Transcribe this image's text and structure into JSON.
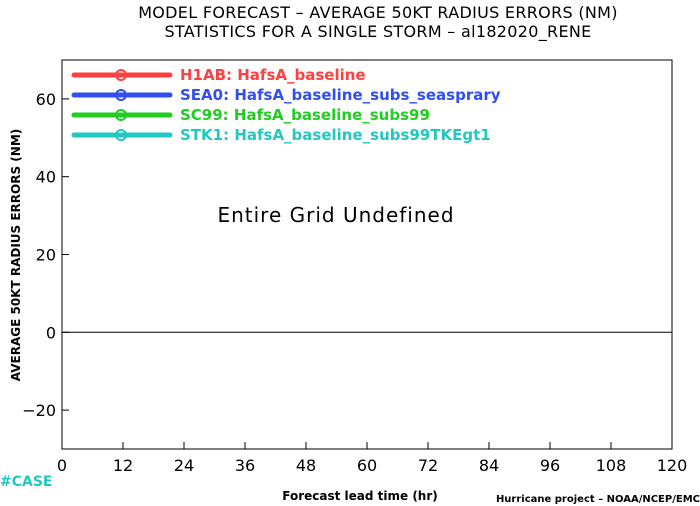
{
  "chart_data": {
    "type": "line",
    "title": "MODEL FORECAST – AVERAGE 50KT RADIUS ERRORS (NM)",
    "subtitle": "STATISTICS FOR A SINGLE STORM – al182020_RENE",
    "xlabel": "Forecast lead time (hr)",
    "ylabel": "AVERAGE 50KT RADIUS ERRORS (NM)",
    "xlim": [
      0,
      120
    ],
    "ylim": [
      -30,
      70
    ],
    "x_ticks": [
      "0",
      "12",
      "24",
      "36",
      "48",
      "60",
      "72",
      "84",
      "96",
      "108",
      "120"
    ],
    "y_ticks": [
      "60",
      "40",
      "20",
      "0",
      "−20"
    ],
    "x_tick_values": [
      0,
      12,
      24,
      36,
      48,
      60,
      72,
      84,
      96,
      108,
      120
    ],
    "y_tick_values": [
      60,
      40,
      20,
      0,
      -20
    ],
    "zero_line": true,
    "grid": false,
    "legend_position": "top-left",
    "annotation": "Entire Grid Undefined",
    "series": [
      {
        "name": "H1AB: HafsA_baseline",
        "color": "#ff4040",
        "values": []
      },
      {
        "name": "SEA0: HafsA_baseline_subs_seasprary",
        "color": "#2f4ff0",
        "values": []
      },
      {
        "name": "SC99: HafsA_baseline_subs99",
        "color": "#22cc22",
        "values": []
      },
      {
        "name": "STK1: HafsA_baseline_subs99TKEgt1",
        "color": "#22c8c0",
        "values": []
      }
    ]
  },
  "footer": {
    "case_label": "#CASE",
    "case_color": "#22c8c0",
    "credit": "Hurricane project – NOAA/NCEP/EMC"
  }
}
